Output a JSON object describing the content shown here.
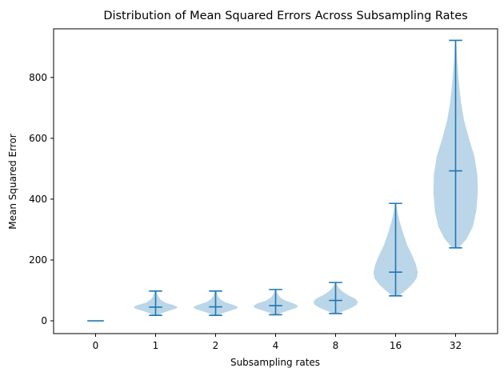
{
  "chart_data": {
    "type": "violin",
    "title": "Distribution of Mean Squared Errors Across Subsampling Rates",
    "xlabel": "Subsampling rates",
    "ylabel": "Mean Squared Error",
    "categories": [
      "0",
      "1",
      "2",
      "4",
      "8",
      "16",
      "32"
    ],
    "ylim": [
      -42,
      960
    ],
    "yticks": [
      0,
      200,
      400,
      600,
      800
    ],
    "grid": false,
    "color": "#1f77b4",
    "series": [
      {
        "min": 0,
        "max": 0,
        "median": 0,
        "profile": [
          [
            0,
            0.15
          ]
        ]
      },
      {
        "min": 18,
        "max": 98,
        "median": 45,
        "profile": [
          [
            18,
            0.08
          ],
          [
            25,
            0.3
          ],
          [
            32,
            0.55
          ],
          [
            40,
            0.92
          ],
          [
            45,
            1.0
          ],
          [
            52,
            0.8
          ],
          [
            60,
            0.42
          ],
          [
            70,
            0.22
          ],
          [
            80,
            0.12
          ],
          [
            90,
            0.06
          ],
          [
            98,
            0.02
          ]
        ]
      },
      {
        "min": 18,
        "max": 98,
        "median": 46,
        "profile": [
          [
            18,
            0.08
          ],
          [
            25,
            0.32
          ],
          [
            32,
            0.6
          ],
          [
            40,
            0.95
          ],
          [
            46,
            1.0
          ],
          [
            53,
            0.78
          ],
          [
            62,
            0.4
          ],
          [
            72,
            0.2
          ],
          [
            82,
            0.1
          ],
          [
            92,
            0.05
          ],
          [
            98,
            0.02
          ]
        ]
      },
      {
        "min": 20,
        "max": 103,
        "median": 50,
        "profile": [
          [
            20,
            0.08
          ],
          [
            27,
            0.3
          ],
          [
            35,
            0.62
          ],
          [
            43,
            0.95
          ],
          [
            50,
            1.0
          ],
          [
            57,
            0.82
          ],
          [
            66,
            0.45
          ],
          [
            76,
            0.22
          ],
          [
            86,
            0.11
          ],
          [
            96,
            0.05
          ],
          [
            103,
            0.02
          ]
        ]
      },
      {
        "min": 24,
        "max": 126,
        "median": 67,
        "profile": [
          [
            24,
            0.08
          ],
          [
            33,
            0.4
          ],
          [
            43,
            0.72
          ],
          [
            53,
            0.95
          ],
          [
            63,
            1.0
          ],
          [
            73,
            0.88
          ],
          [
            85,
            0.55
          ],
          [
            97,
            0.3
          ],
          [
            108,
            0.15
          ],
          [
            118,
            0.07
          ],
          [
            126,
            0.02
          ]
        ]
      },
      {
        "min": 82,
        "max": 386,
        "median": 160,
        "profile": [
          [
            82,
            0.15
          ],
          [
            100,
            0.45
          ],
          [
            120,
            0.75
          ],
          [
            140,
            0.95
          ],
          [
            160,
            1.0
          ],
          [
            185,
            0.92
          ],
          [
            215,
            0.75
          ],
          [
            250,
            0.52
          ],
          [
            290,
            0.33
          ],
          [
            330,
            0.17
          ],
          [
            360,
            0.08
          ],
          [
            386,
            0.03
          ]
        ]
      },
      {
        "min": 240,
        "max": 922,
        "median": 493,
        "profile": [
          [
            240,
            0.15
          ],
          [
            270,
            0.5
          ],
          [
            310,
            0.78
          ],
          [
            360,
            0.93
          ],
          [
            420,
            1.0
          ],
          [
            480,
            0.98
          ],
          [
            540,
            0.85
          ],
          [
            600,
            0.6
          ],
          [
            660,
            0.38
          ],
          [
            720,
            0.24
          ],
          [
            790,
            0.14
          ],
          [
            860,
            0.07
          ],
          [
            922,
            0.03
          ]
        ]
      }
    ]
  }
}
